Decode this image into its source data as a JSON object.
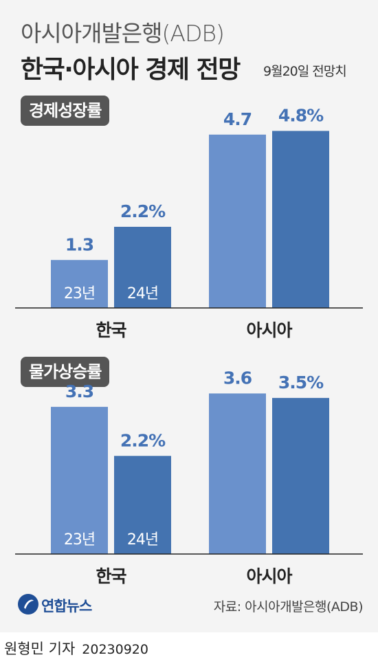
{
  "header": {
    "subtitle": "아시아개발은행(ADB)",
    "title": "한국·아시아 경제 전망",
    "forecast_date": "9월20일 전망치"
  },
  "colors": {
    "bar_23": "#6a91cc",
    "bar_24": "#4473b0",
    "label": "#4472b5",
    "tag_bg": "#555555"
  },
  "chart_data": [
    {
      "type": "bar",
      "title": "경제성장률",
      "categories": [
        "한국",
        "아시아"
      ],
      "ylim": [
        0,
        5.2
      ],
      "series": [
        {
          "name": "23년",
          "values": [
            1.3,
            4.7
          ]
        },
        {
          "name": "24년",
          "values": [
            2.2,
            4.8
          ]
        }
      ],
      "value_labels": [
        [
          "1.3",
          "2.2%"
        ],
        [
          "4.7",
          "4.8%"
        ]
      ],
      "grid": false
    },
    {
      "type": "bar",
      "title": "물가상승률",
      "categories": [
        "한국",
        "아시아"
      ],
      "ylim": [
        0,
        4.3
      ],
      "series": [
        {
          "name": "23년",
          "values": [
            3.3,
            3.6
          ]
        },
        {
          "name": "24년",
          "values": [
            2.2,
            3.5
          ]
        }
      ],
      "value_labels": [
        [
          "3.3",
          "2.2%"
        ],
        [
          "3.6",
          "3.5%"
        ]
      ],
      "grid": false
    }
  ],
  "footer": {
    "source": "자료: 아시아개발은행(ADB)",
    "logo_text": "연합뉴스",
    "reporter": "원형민 기자",
    "date": "20230920"
  }
}
